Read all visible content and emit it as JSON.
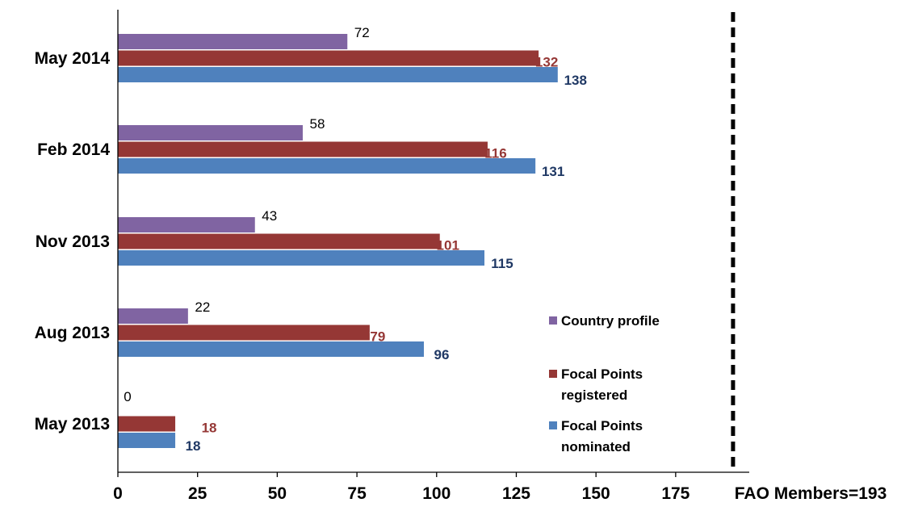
{
  "chart_data": {
    "type": "bar",
    "orientation": "horizontal",
    "categories": [
      "May 2014",
      "Feb 2014",
      "Nov 2013",
      "Aug 2013",
      "May 2013"
    ],
    "series": [
      {
        "name": "Country profile",
        "values": [
          72,
          58,
          43,
          22,
          0
        ],
        "color": "#8064A2",
        "label_color": "#000000"
      },
      {
        "name": "Focal Points registered",
        "values": [
          132,
          116,
          101,
          79,
          18
        ],
        "color": "#953735",
        "label_color": "#953735"
      },
      {
        "name": "Focal Points nominated",
        "values": [
          138,
          131,
          115,
          96,
          18
        ],
        "color": "#4F81BD",
        "label_color": "#1F3864"
      }
    ],
    "x_ticks": [
      "0",
      "25",
      "50",
      "75",
      "100",
      "125",
      "150",
      "175"
    ],
    "xlim": [
      0,
      200
    ],
    "reference_line": {
      "value": 193,
      "label": "FAO Members=193"
    },
    "legend": {
      "placement": "right-center",
      "entries": [
        {
          "series": 0,
          "lines": [
            "Country profile"
          ]
        },
        {
          "series": 1,
          "lines": [
            "Focal Points",
            "registered"
          ]
        },
        {
          "series": 2,
          "lines": [
            "Focal Points",
            "nominated"
          ]
        }
      ]
    },
    "grid": false
  }
}
